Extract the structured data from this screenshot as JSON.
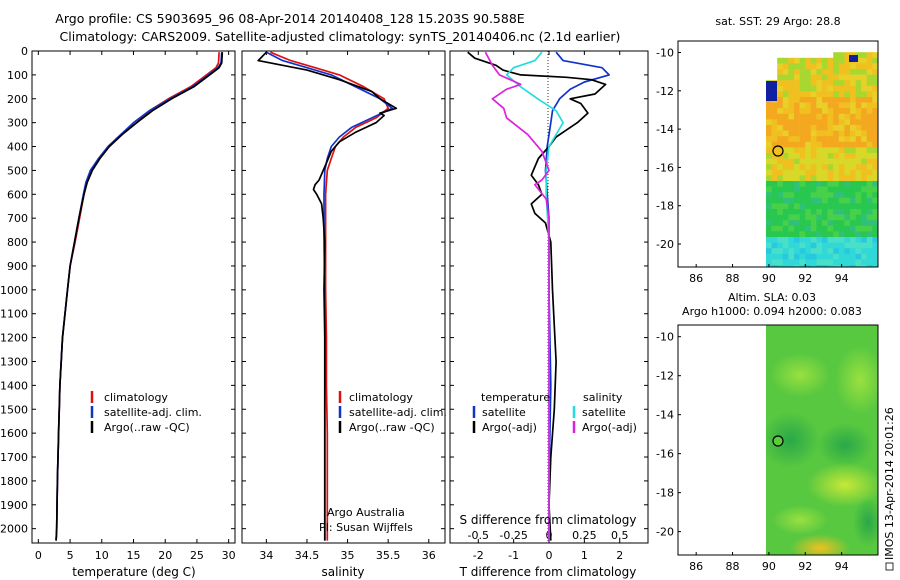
{
  "title_line1": "Argo profile: CS 5903695_96 08-Apr-2014 20140408_128 15.203S 90.588E",
  "title_line2": "Climatology: CARS2009. Satellite-adjusted climatology: synTS_20140406.nc (2.1d earlier)",
  "colors": {
    "clim": "#dd1111",
    "sat": "#1133cc",
    "argo": "#000000",
    "sat_salt": "#22dddd",
    "argo_salt": "#dd22dd"
  },
  "chart_data": [
    {
      "id": "temperature",
      "type": "line",
      "xlabel": "temperature (deg C)",
      "xlim": [
        -1,
        31
      ],
      "xticks": [
        0,
        5,
        10,
        15,
        20,
        25,
        30
      ],
      "xtick_labels": [
        "0",
        "5",
        "10",
        "15",
        "20",
        "25",
        "30"
      ],
      "ylim": [
        0,
        2060
      ],
      "yticks": [
        0,
        100,
        200,
        300,
        400,
        500,
        600,
        700,
        800,
        900,
        1000,
        1100,
        1200,
        1300,
        1400,
        1500,
        1600,
        1700,
        1800,
        1900,
        2000
      ],
      "ytick_labels": [
        "0",
        "100",
        "200",
        "300",
        "400",
        "500",
        "600",
        "700",
        "800",
        "900",
        "1000",
        "1100",
        "1200",
        "1300",
        "1400",
        "1500",
        "1600",
        "1700",
        "1800",
        "1900",
        "2000"
      ],
      "legend": [
        "climatology",
        "satellite-adj. clim.",
        "Argo(..raw -QC)"
      ],
      "series": [
        {
          "name": "climatology",
          "color": "clim",
          "x": [
            28.5,
            28.4,
            28.0,
            26.5,
            24.0,
            20.5,
            17.5,
            15.5,
            13.0,
            11.0,
            9.5,
            8.3,
            7.6,
            7.2,
            6.5,
            5.8,
            5.0,
            4.6,
            4.2,
            3.8,
            3.4,
            3.2,
            3.0,
            2.9,
            2.8
          ],
          "depth": [
            5,
            50,
            70,
            100,
            150,
            200,
            250,
            300,
            350,
            400,
            450,
            500,
            550,
            600,
            700,
            800,
            900,
            1000,
            1100,
            1200,
            1400,
            1600,
            1800,
            2000,
            2050
          ]
        },
        {
          "name": "satellite-adj. clim.",
          "color": "sat",
          "x": [
            28.9,
            28.8,
            28.3,
            26.8,
            24.3,
            20.8,
            17.5,
            15.0,
            13.0,
            11.0,
            9.5,
            8.2,
            7.5,
            7.1,
            6.4,
            5.7,
            5.0,
            4.6,
            4.2,
            3.8,
            3.4,
            3.2,
            3.0,
            2.9,
            2.8
          ],
          "depth": [
            5,
            50,
            70,
            100,
            150,
            200,
            250,
            300,
            350,
            400,
            450,
            500,
            550,
            600,
            700,
            800,
            900,
            1000,
            1100,
            1200,
            1400,
            1600,
            1800,
            2000,
            2050
          ]
        },
        {
          "name": "Argo(..raw -QC)",
          "color": "argo",
          "x": [
            29.0,
            28.9,
            28.5,
            27.0,
            24.5,
            21.0,
            18.0,
            15.5,
            13.2,
            11.2,
            9.7,
            8.5,
            7.7,
            7.2,
            6.4,
            5.7,
            5.0,
            4.6,
            4.2,
            3.8,
            3.4,
            3.2,
            3.0,
            2.9,
            2.8
          ],
          "depth": [
            5,
            50,
            70,
            100,
            150,
            200,
            250,
            300,
            350,
            400,
            450,
            500,
            550,
            600,
            700,
            800,
            900,
            1000,
            1100,
            1200,
            1400,
            1600,
            1800,
            2000,
            2050
          ]
        }
      ]
    },
    {
      "id": "salinity",
      "type": "line",
      "xlabel": "salinity",
      "xlim": [
        33.7,
        36.2
      ],
      "xticks": [
        34,
        34.5,
        35,
        35.5,
        36
      ],
      "xtick_labels": [
        "34",
        "34.5",
        "35",
        "35.5",
        "36"
      ],
      "ylim": [
        0,
        2060
      ],
      "legend": [
        "climatology",
        "satellite-adj. clim.",
        "Argo(..raw -QC)"
      ],
      "annotation": [
        "Argo Australia",
        "PI: Susan Wijffels"
      ],
      "series": [
        {
          "name": "climatology",
          "color": "clim",
          "x": [
            34.05,
            34.3,
            34.6,
            34.9,
            35.2,
            35.45,
            35.5,
            35.35,
            35.1,
            34.95,
            34.85,
            34.8,
            34.75,
            34.73,
            34.73,
            34.73,
            34.73,
            34.74,
            34.74,
            34.75,
            34.75,
            34.75
          ],
          "depth": [
            5,
            40,
            70,
            100,
            150,
            200,
            240,
            280,
            320,
            360,
            400,
            450,
            500,
            600,
            700,
            800,
            1000,
            1200,
            1400,
            1600,
            1800,
            2050
          ]
        },
        {
          "name": "satellite-adj. clim.",
          "color": "sat",
          "x": [
            34.0,
            34.2,
            34.5,
            34.8,
            35.1,
            35.4,
            35.55,
            35.3,
            35.05,
            34.9,
            34.8,
            34.75,
            34.72,
            34.71,
            34.71,
            34.71,
            34.72,
            34.72,
            34.72,
            34.72,
            34.72,
            34.72
          ],
          "depth": [
            5,
            40,
            70,
            100,
            150,
            200,
            240,
            280,
            320,
            360,
            400,
            450,
            500,
            600,
            700,
            800,
            1000,
            1200,
            1400,
            1600,
            1800,
            2050
          ]
        },
        {
          "name": "Argo(..raw -QC)",
          "color": "argo",
          "x": [
            34.0,
            33.9,
            34.5,
            34.9,
            35.3,
            35.4,
            35.6,
            35.4,
            35.45,
            35.35,
            35.1,
            34.9,
            34.8,
            34.75,
            34.7,
            34.65,
            34.6,
            34.58,
            34.62,
            34.68,
            34.7,
            34.72,
            34.71,
            34.72,
            34.72,
            34.72,
            34.72,
            34.72,
            34.72
          ],
          "depth": [
            5,
            40,
            80,
            120,
            170,
            200,
            240,
            260,
            270,
            300,
            340,
            380,
            420,
            460,
            500,
            540,
            560,
            580,
            600,
            640,
            700,
            800,
            1000,
            1200,
            1400,
            1600,
            1800,
            2000,
            2050
          ]
        }
      ]
    },
    {
      "id": "difference",
      "type": "line",
      "xlabel": "T difference from climatology",
      "xlabel_top": "S difference from climatology",
      "xlim": [
        -2.8,
        2.8
      ],
      "xticks": [
        -2,
        -1,
        0,
        1,
        2
      ],
      "xtick_labels": [
        "-2",
        "-1",
        "0",
        "1",
        "2"
      ],
      "sticks": [
        -0.5,
        -0.25,
        0,
        0.25,
        0.5
      ],
      "stick_labels": [
        "-0.5",
        "-0.25",
        "0",
        "0.25",
        "0.5"
      ],
      "ylim": [
        0,
        2060
      ],
      "legend_left_title": "temperature",
      "legend_right_title": "salinity",
      "legend": [
        "satellite",
        "Argo(-adj)",
        "satellite",
        "Argo(-adj)"
      ],
      "series": [
        {
          "name": "T satellite",
          "color": "sat",
          "x": [
            0.2,
            0.4,
            1.5,
            1.7,
            1.0,
            0.6,
            0.3,
            0.1,
            0.05,
            0.0,
            -0.05,
            -0.1,
            -0.05,
            0.0,
            0.0,
            0.0,
            0.05,
            0.0,
            0.0
          ],
          "depth": [
            5,
            40,
            70,
            100,
            130,
            160,
            200,
            250,
            300,
            350,
            400,
            500,
            600,
            700,
            800,
            1000,
            1400,
            1800,
            2050
          ]
        },
        {
          "name": "T Argo(-adj)",
          "color": "argo",
          "x": [
            -2.3,
            -2.1,
            -1.5,
            -1.3,
            -0.8,
            0.5,
            1.2,
            1.6,
            1.3,
            0.6,
            0.9,
            1.1,
            0.8,
            0.5,
            0.2,
            0.0,
            -0.3,
            -0.5,
            -0.3,
            -0.2,
            -0.5,
            -0.4,
            -0.1,
            0.05,
            0.1,
            0.2,
            0.15,
            0.05,
            0.0,
            0.05
          ],
          "depth": [
            5,
            30,
            60,
            80,
            100,
            110,
            120,
            140,
            180,
            200,
            220,
            260,
            300,
            330,
            360,
            400,
            450,
            520,
            560,
            600,
            640,
            680,
            720,
            800,
            1000,
            1300,
            1500,
            1700,
            1900,
            2050
          ]
        },
        {
          "name": "S satellite",
          "color": "sat_salt",
          "x": [
            -0.05,
            -0.1,
            -0.25,
            -0.3,
            -0.2,
            -0.08,
            0.05,
            0.1,
            0.05,
            0.0,
            -0.02,
            -0.02,
            -0.01,
            0.0,
            0.0,
            0.0,
            0.0
          ],
          "depth": [
            5,
            40,
            70,
            100,
            150,
            200,
            250,
            300,
            350,
            400,
            500,
            600,
            700,
            800,
            1000,
            1500,
            2050
          ]
        },
        {
          "name": "S Argo(-adj)",
          "color": "argo_salt",
          "x": [
            -0.45,
            -0.4,
            -0.35,
            -0.2,
            -0.3,
            -0.4,
            -0.32,
            -0.3,
            -0.15,
            -0.05,
            0.0,
            -0.05,
            -0.1,
            -0.02,
            0.0,
            0.0,
            0.0
          ],
          "depth": [
            5,
            60,
            100,
            140,
            160,
            200,
            240,
            280,
            350,
            420,
            500,
            540,
            560,
            620,
            700,
            1000,
            2050
          ]
        }
      ]
    },
    {
      "id": "sst-map",
      "type": "heatmap",
      "title": "sat. SST: 29 Argo: 28.8",
      "xticks": [
        86,
        88,
        90,
        92,
        94
      ],
      "yticks": [
        -10,
        -12,
        -14,
        -16,
        -18,
        -20
      ],
      "xlim": [
        85,
        96
      ],
      "ylim": [
        -21.2,
        -9.4
      ],
      "marker": {
        "lon": 90.588,
        "lat": -15.203
      }
    },
    {
      "id": "sla-map",
      "type": "heatmap",
      "title_line1": "Altim. SLA: 0.03",
      "title_line2": "Argo h1000: 0.094 h2000: 0.083",
      "xticks": [
        86,
        88,
        90,
        92,
        94
      ],
      "yticks": [
        -10,
        -12,
        -14,
        -16,
        -18,
        -20
      ],
      "xlim": [
        85,
        96
      ],
      "ylim": [
        -21.2,
        -9.4
      ],
      "marker": {
        "lon": 90.588,
        "lat": -15.203
      }
    }
  ],
  "side_label": "IMOS 13-Apr-2014 20:01:26"
}
